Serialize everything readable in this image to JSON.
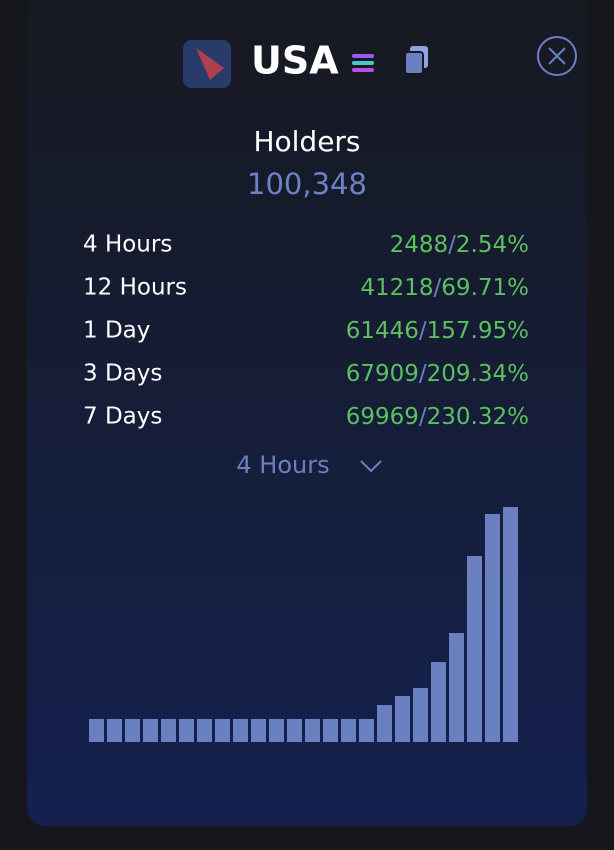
{
  "header": {
    "title": "USA"
  },
  "holders": {
    "label": "Holders",
    "value": "100,348"
  },
  "separator": "/",
  "rows": [
    {
      "label": "4 Hours",
      "count": "2488",
      "change": "2.54%"
    },
    {
      "label": "12 Hours",
      "count": "41218",
      "change": "69.71%"
    },
    {
      "label": "1 Day",
      "count": "61446",
      "change": "157.95%"
    },
    {
      "label": "3 Days",
      "count": "67909",
      "change": "209.34%"
    },
    {
      "label": "7 Days",
      "count": "69969",
      "change": "230.32%"
    }
  ],
  "dropdown": {
    "selected": "4 Hours"
  },
  "chart_data": {
    "type": "bar",
    "color": "#6a80c0",
    "values": [
      23,
      23,
      23,
      23,
      23,
      23,
      23,
      23,
      23,
      23,
      23,
      23,
      23,
      23,
      23,
      23,
      37,
      46,
      54,
      80,
      109,
      186,
      228,
      235
    ]
  }
}
